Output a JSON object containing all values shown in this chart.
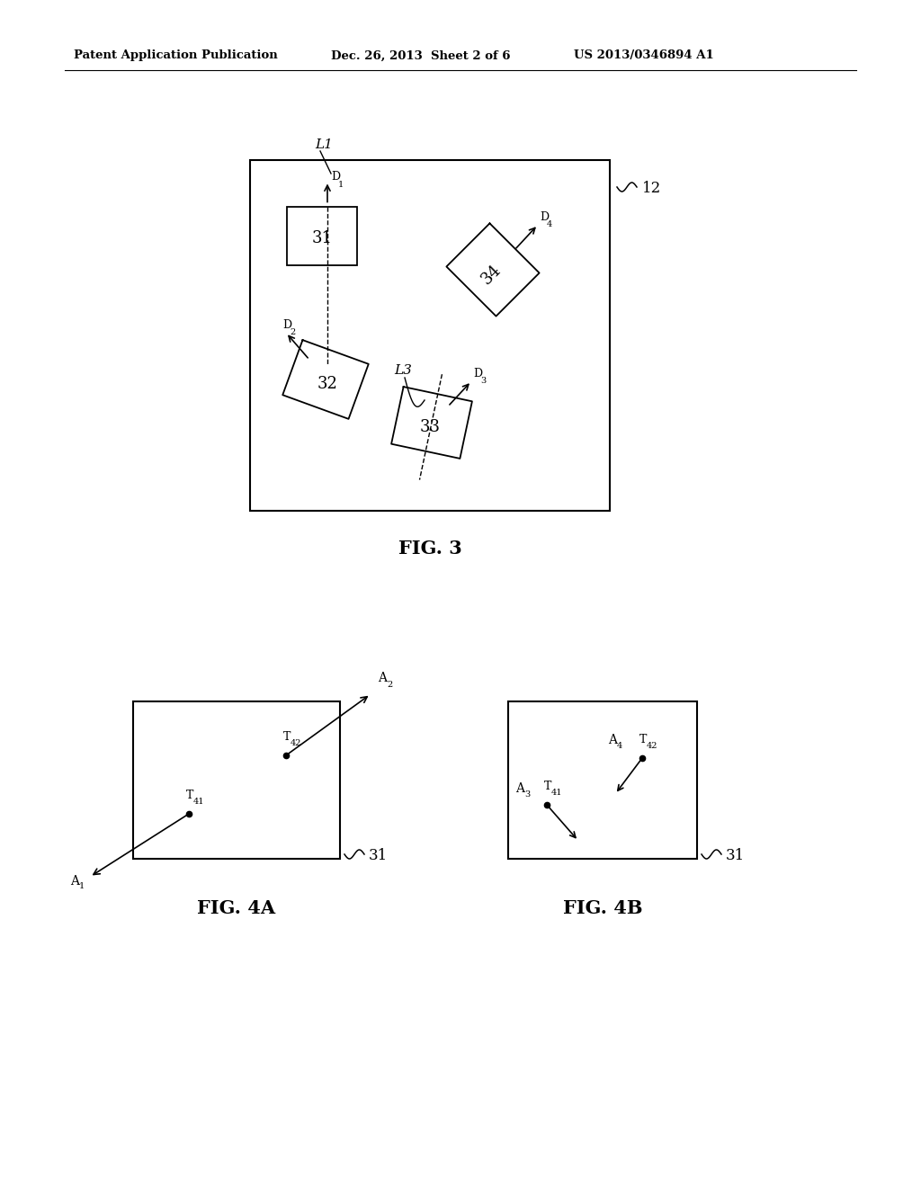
{
  "bg_color": "#ffffff",
  "header_left": "Patent Application Publication",
  "header_mid": "Dec. 26, 2013  Sheet 2 of 6",
  "header_right": "US 2013/0346894 A1"
}
